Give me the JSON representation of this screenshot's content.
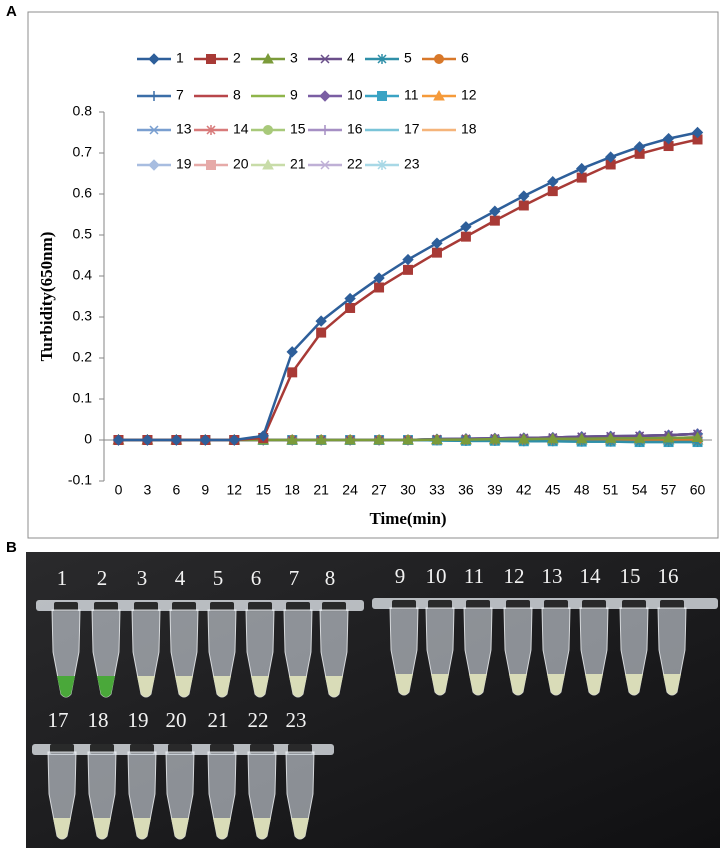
{
  "panel_a_label": "A",
  "chart_data": {
    "type": "line",
    "xlabel": "Time(min)",
    "ylabel": "Turbidity(650nm)",
    "x": [
      0,
      3,
      6,
      9,
      12,
      15,
      18,
      21,
      24,
      27,
      30,
      33,
      36,
      39,
      42,
      45,
      48,
      51,
      54,
      57,
      60
    ],
    "xlim": [
      -1.5,
      61.5
    ],
    "xticks": [
      0,
      3,
      6,
      9,
      12,
      15,
      18,
      21,
      24,
      27,
      30,
      33,
      36,
      39,
      42,
      45,
      48,
      51,
      54,
      57,
      60
    ],
    "ylim": [
      -0.1,
      0.8
    ],
    "yticks": [
      -0.1,
      0,
      0.1,
      0.2,
      0.3,
      0.4,
      0.5,
      0.6,
      0.7,
      0.8
    ],
    "grid": false,
    "legend": "top",
    "series": [
      {
        "name": "1",
        "color": "#2e5f9a",
        "marker": "diamond",
        "values": [
          0,
          0,
          0,
          0,
          0,
          0.01,
          0.215,
          0.29,
          0.345,
          0.395,
          0.44,
          0.48,
          0.52,
          0.558,
          0.595,
          0.63,
          0.662,
          0.69,
          0.715,
          0.735,
          0.75
        ]
      },
      {
        "name": "2",
        "color": "#a83a36",
        "marker": "square",
        "values": [
          0,
          0,
          0,
          0,
          0,
          0.005,
          0.165,
          0.262,
          0.322,
          0.372,
          0.415,
          0.457,
          0.496,
          0.535,
          0.572,
          0.607,
          0.64,
          0.672,
          0.698,
          0.717,
          0.733
        ]
      },
      {
        "name": "3",
        "color": "#7b9b3a",
        "marker": "triangle",
        "values": [
          0,
          0,
          0,
          0,
          0,
          0,
          0,
          0,
          0,
          0,
          0,
          0.001,
          0.001,
          0.002,
          0.002,
          0.003,
          0.003,
          0.004,
          0.004,
          0.005,
          0.006
        ]
      },
      {
        "name": "4",
        "color": "#6a4f8a",
        "marker": "x",
        "values": [
          0,
          0,
          0,
          0,
          0,
          0,
          0,
          0,
          0,
          0,
          0,
          0.002,
          0.003,
          0.004,
          0.005,
          0.006,
          0.008,
          0.009,
          0.01,
          0.012,
          0.015
        ]
      },
      {
        "name": "5",
        "color": "#2f8fa8",
        "marker": "star",
        "values": [
          0,
          0,
          0,
          0,
          0,
          0,
          0,
          0,
          0,
          0,
          0,
          -0.001,
          -0.002,
          -0.002,
          -0.003,
          -0.003,
          -0.004,
          -0.004,
          -0.005,
          -0.005,
          -0.005
        ]
      },
      {
        "name": "6",
        "color": "#d8782a",
        "marker": "circle",
        "values": [
          0,
          0,
          0,
          0,
          0,
          0,
          0,
          0,
          0,
          0,
          0,
          0,
          0,
          0,
          0,
          0,
          0,
          0,
          0,
          0,
          0
        ]
      },
      {
        "name": "7",
        "color": "#3b6ea8",
        "marker": "plus",
        "values": [
          0,
          0,
          0,
          0,
          0,
          0,
          0,
          0,
          0,
          0,
          0,
          0.002,
          0.003,
          0.004,
          0.005,
          0.006,
          0.008,
          0.009,
          0.01,
          0.012,
          0.015
        ]
      },
      {
        "name": "8",
        "color": "#b8464a",
        "marker": "none",
        "values": [
          0,
          0,
          0,
          0,
          0,
          0,
          0,
          0,
          0,
          0,
          0,
          0,
          0,
          0,
          0,
          0,
          0,
          0,
          0,
          0,
          0
        ]
      },
      {
        "name": "9",
        "color": "#8fb54a",
        "marker": "none",
        "values": [
          0,
          0,
          0,
          0,
          0,
          0,
          0,
          0,
          0,
          0,
          0,
          0.001,
          0.001,
          0.002,
          0.002,
          0.003,
          0.003,
          0.004,
          0.004,
          0.005,
          0.006
        ]
      },
      {
        "name": "10",
        "color": "#7a5ea3",
        "marker": "diamond",
        "values": [
          0,
          0,
          0,
          0,
          0,
          0,
          0,
          0,
          0,
          0,
          0,
          0.002,
          0.003,
          0.004,
          0.005,
          0.006,
          0.008,
          0.009,
          0.01,
          0.012,
          0.015
        ]
      },
      {
        "name": "11",
        "color": "#3aa3c4",
        "marker": "square",
        "values": [
          0,
          0,
          0,
          0,
          0,
          0,
          0,
          0,
          0,
          0,
          0,
          -0.001,
          -0.002,
          -0.002,
          -0.003,
          -0.003,
          -0.004,
          -0.004,
          -0.005,
          -0.005,
          -0.005
        ]
      },
      {
        "name": "12",
        "color": "#f59a3a",
        "marker": "triangle",
        "values": [
          0,
          0,
          0,
          0,
          0,
          0,
          0,
          0,
          0,
          0,
          0,
          0,
          0,
          0,
          0,
          0,
          0,
          0,
          0,
          0,
          0
        ]
      },
      {
        "name": "13",
        "color": "#7a9fd0",
        "marker": "x",
        "values": [
          0,
          0,
          0,
          0,
          0,
          0,
          0,
          0,
          0,
          0,
          0,
          0.001,
          0.001,
          0.002,
          0.002,
          0.003,
          0.003,
          0.004,
          0.004,
          0.005,
          0.006
        ]
      },
      {
        "name": "14",
        "color": "#d87a7a",
        "marker": "star",
        "values": [
          0,
          0,
          0,
          0,
          0,
          0,
          0,
          0,
          0,
          0,
          0,
          0,
          0,
          0,
          0,
          0,
          0,
          0,
          0,
          0,
          0
        ]
      },
      {
        "name": "15",
        "color": "#a8c97a",
        "marker": "circle",
        "values": [
          0,
          0,
          0,
          0,
          0,
          0,
          0,
          0,
          0,
          0,
          0,
          0.001,
          0.001,
          0.002,
          0.002,
          0.003,
          0.003,
          0.004,
          0.004,
          0.005,
          0.006
        ]
      },
      {
        "name": "16",
        "color": "#a68fc4",
        "marker": "plus",
        "values": [
          0,
          0,
          0,
          0,
          0,
          0,
          0,
          0,
          0,
          0,
          0,
          0.002,
          0.003,
          0.004,
          0.005,
          0.006,
          0.008,
          0.009,
          0.01,
          0.012,
          0.015
        ]
      },
      {
        "name": "17",
        "color": "#7ac4d8",
        "marker": "none",
        "values": [
          0,
          0,
          0,
          0,
          0,
          0,
          0,
          0,
          0,
          0,
          0,
          0,
          0,
          0,
          0,
          0,
          0,
          0,
          0,
          0,
          0
        ]
      },
      {
        "name": "18",
        "color": "#f5b47a",
        "marker": "none",
        "values": [
          0,
          0,
          0,
          0,
          0,
          0,
          0,
          0,
          0,
          0,
          0,
          0,
          0,
          0,
          0,
          0,
          0,
          0,
          0,
          0,
          0
        ]
      },
      {
        "name": "19",
        "color": "#a8bde0",
        "marker": "diamond",
        "values": [
          0,
          0,
          0,
          0,
          0,
          0,
          0,
          0,
          0,
          0,
          0,
          0.001,
          0.001,
          0.002,
          0.002,
          0.003,
          0.003,
          0.004,
          0.004,
          0.005,
          0.006
        ]
      },
      {
        "name": "20",
        "color": "#e6aaa8",
        "marker": "square",
        "values": [
          0,
          0,
          0,
          0,
          0,
          0,
          0,
          0,
          0,
          0,
          0,
          0,
          0,
          0,
          0,
          0,
          0,
          0,
          0,
          0,
          0
        ]
      },
      {
        "name": "21",
        "color": "#c8dca8",
        "marker": "triangle",
        "values": [
          0,
          0,
          0,
          0,
          0,
          0,
          0,
          0,
          0,
          0,
          0,
          0,
          0,
          0,
          0,
          0,
          0,
          0,
          0,
          0,
          0
        ]
      },
      {
        "name": "22",
        "color": "#bfb0d6",
        "marker": "x",
        "values": [
          0,
          0,
          0,
          0,
          0,
          0,
          0,
          0,
          0,
          0,
          0,
          0.002,
          0.003,
          0.004,
          0.005,
          0.006,
          0.008,
          0.009,
          0.01,
          0.012,
          0.015
        ]
      },
      {
        "name": "23",
        "color": "#a8d8e6",
        "marker": "star",
        "values": [
          0,
          0,
          0,
          0,
          0,
          0,
          0,
          0,
          0,
          0,
          0,
          0,
          0,
          0,
          0,
          0,
          0,
          0,
          0,
          0,
          0
        ]
      }
    ]
  },
  "panel_b": {
    "label": "B",
    "tubes": [
      "1",
      "2",
      "3",
      "4",
      "5",
      "6",
      "7",
      "8",
      "9",
      "10",
      "11",
      "12",
      "13",
      "14",
      "15",
      "16",
      "17",
      "18",
      "19",
      "20",
      "21",
      "22",
      "23"
    ]
  }
}
